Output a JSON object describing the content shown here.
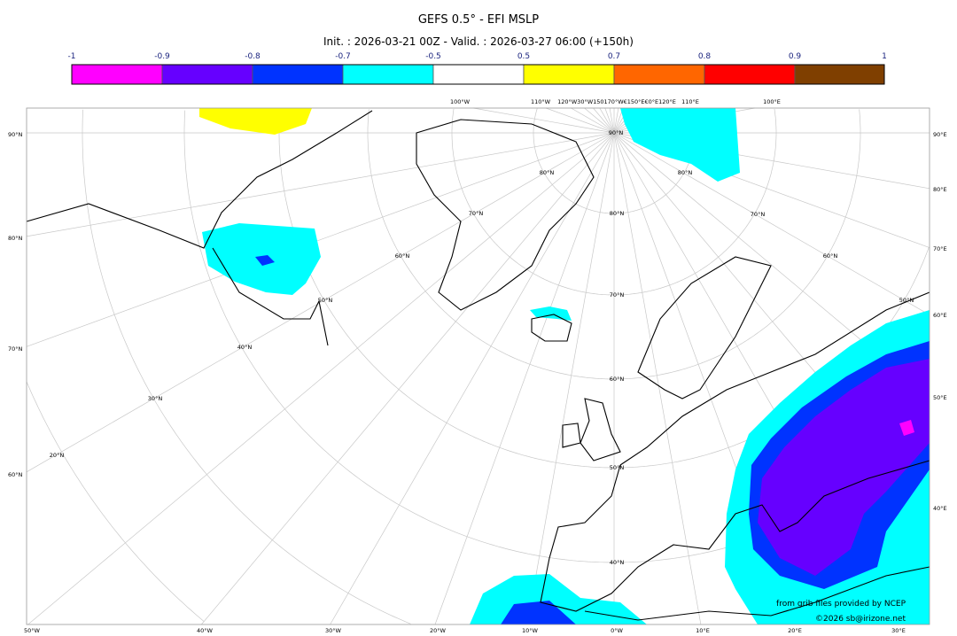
{
  "header": {
    "title": "GEFS 0.5° - EFI MSLP",
    "subtitle": "Init. : 2026-03-21 00Z - Valid. : 2026-03-27 06:00 (+150h)"
  },
  "colorbar": {
    "ticks": [
      "-1",
      "-0.9",
      "-0.8",
      "-0.7",
      "-0.5",
      "0.5",
      "0.7",
      "0.8",
      "0.9",
      "1"
    ],
    "colors": [
      "#ff00ff",
      "#6600ff",
      "#0033ff",
      "#00ffff",
      "#ffffff",
      "#ffff00",
      "#ff6600",
      "#ff0000",
      "#7f3f00"
    ]
  },
  "map": {
    "projection": "polar stereographic",
    "left_labels": [
      "90°N",
      "80°N",
      "70°N",
      "60°N"
    ],
    "right_labels": [
      "90°E",
      "80°E",
      "70°E",
      "60°E",
      "50°E",
      "40°E"
    ],
    "bottom_labels": [
      "50°W",
      "40°W",
      "30°W",
      "20°W",
      "10°W",
      "0°W",
      "10°E",
      "20°E",
      "30°E"
    ],
    "top_labels": [
      "100°W",
      "110°W",
      "120°W30°W150170°W€150°E€0°E120°E",
      "110°E",
      "100°E"
    ],
    "lat_labels": [
      "90°N",
      "80°N",
      "70°N",
      "60°N",
      "50°N",
      "40°N",
      "30°N",
      "20°N"
    ],
    "meridian0_labels": [
      "80°N",
      "70°N",
      "60°N",
      "50°N",
      "40°N"
    ],
    "east_lat_labels": [
      "80°N",
      "70°N",
      "60°N",
      "50°N"
    ]
  },
  "credits": {
    "source": "from grib files provided by NCEP",
    "copyright": "©2026 sb@irizone.net"
  }
}
